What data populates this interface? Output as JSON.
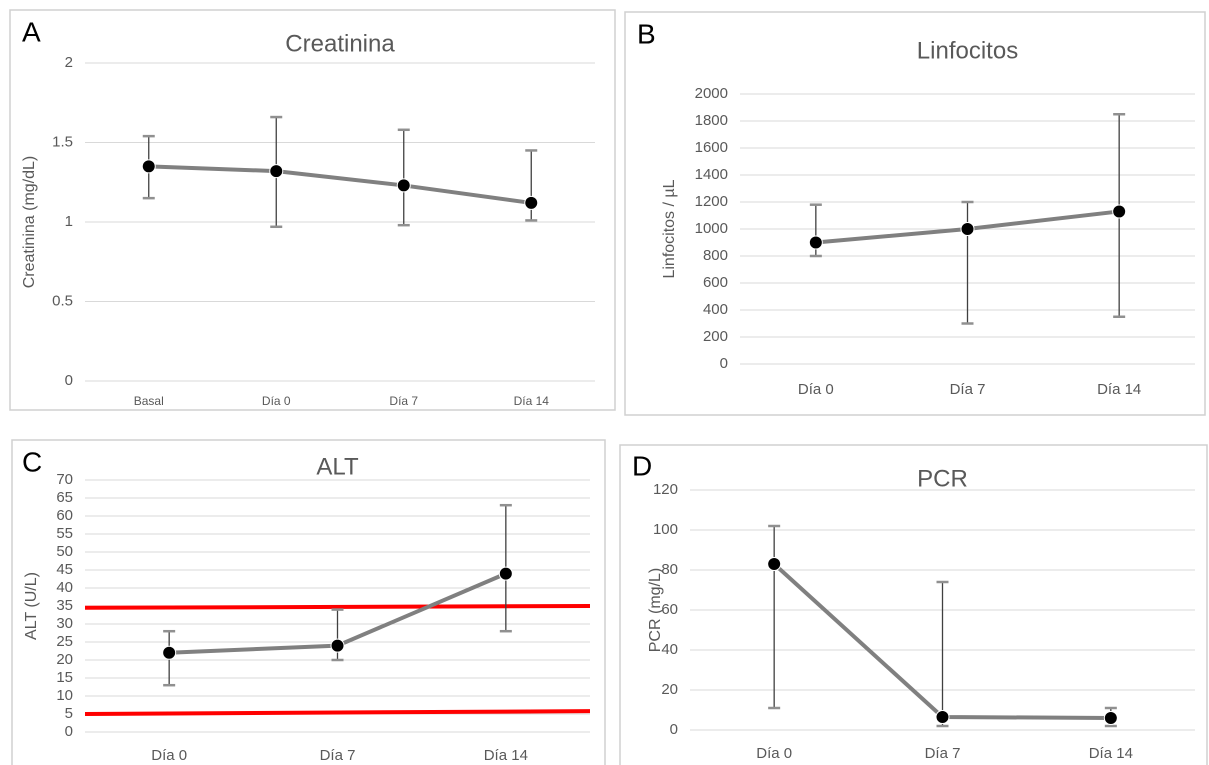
{
  "chart_data": [
    {
      "type": "line",
      "label": "A",
      "title": "Creatinina",
      "y_label": "Creatinina (mg/dL)",
      "categories": [
        "Basal",
        "Día 0",
        "Día 7",
        "Día 14"
      ],
      "series": [
        {
          "color": "#808080",
          "marker_color": "#000000",
          "values": [
            1.35,
            1.32,
            1.23,
            1.12
          ],
          "err_low": [
            1.15,
            0.97,
            0.98,
            1.01
          ],
          "err_high": [
            1.54,
            1.66,
            1.58,
            1.45
          ]
        }
      ],
      "ylim": [
        0,
        2
      ],
      "yticks": [
        0,
        0.5,
        1,
        1.5,
        2
      ],
      "grid": true
    },
    {
      "type": "line",
      "label": "B",
      "title": "Linfocitos",
      "y_label": "Linfocitos / µL",
      "categories": [
        "Día 0",
        "Día 7",
        "Día 14"
      ],
      "series": [
        {
          "color": "#808080",
          "marker_color": "#000000",
          "values": [
            900,
            1000,
            1130
          ],
          "err_low": [
            800,
            300,
            350
          ],
          "err_high": [
            1180,
            1200,
            1850
          ]
        }
      ],
      "ylim": [
        0,
        2000
      ],
      "yticks": [
        0,
        200,
        400,
        600,
        800,
        1000,
        1200,
        1400,
        1600,
        1800,
        2000
      ],
      "grid": true
    },
    {
      "type": "line",
      "label": "C",
      "title": "ALT",
      "y_label": "ALT (U/L)",
      "categories": [
        "Día 0",
        "Día 7",
        "Día 14"
      ],
      "series": [
        {
          "color": "#808080",
          "marker_color": "#000000",
          "values": [
            22,
            24,
            44
          ],
          "err_low": [
            13,
            20,
            28
          ],
          "err_high": [
            28,
            34,
            63
          ]
        }
      ],
      "reference_lines": [
        {
          "color": "#ff0000",
          "values": [
            34.5,
            35
          ]
        },
        {
          "color": "#ff0000",
          "values": [
            5,
            5.8
          ]
        }
      ],
      "ylim": [
        0,
        70
      ],
      "yticks": [
        0,
        5,
        10,
        15,
        20,
        25,
        30,
        35,
        40,
        45,
        50,
        55,
        60,
        65,
        70
      ],
      "grid": true
    },
    {
      "type": "line",
      "label": "D",
      "title": "PCR",
      "y_label": "PCR (mg/L)",
      "categories": [
        "Día 0",
        "Día 7",
        "Día 14"
      ],
      "series": [
        {
          "color": "#808080",
          "marker_color": "#000000",
          "values": [
            83,
            6.5,
            6
          ],
          "err_low": [
            11,
            2,
            2
          ],
          "err_high": [
            102,
            74,
            11
          ]
        }
      ],
      "ylim": [
        0,
        120
      ],
      "yticks": [
        0,
        20,
        40,
        60,
        80,
        100,
        120
      ],
      "grid": true
    }
  ]
}
